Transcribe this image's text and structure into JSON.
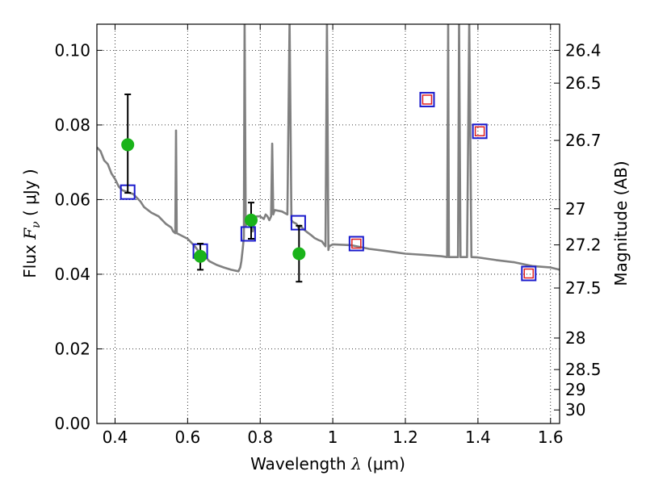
{
  "chart_data": {
    "type": "scatter",
    "xlabel": "Wavelength  λ (μm)",
    "ylabel": "Flux  Fν  ( μJy )",
    "ylabel_parts": {
      "prefix": "Flux  ",
      "symbol": "F",
      "subscript": "ν",
      "suffix": "  ( μJy )"
    },
    "xlabel_parts": {
      "prefix": "Wavelength  ",
      "symbol": "λ",
      "suffix": " (μm)"
    },
    "y2label": "Magnitude (AB)",
    "xlim": [
      0.35,
      1.625
    ],
    "ylim": [
      0.0,
      0.107
    ],
    "grid": true,
    "x_ticks": [
      0.4,
      0.6,
      0.8,
      1.0,
      1.2,
      1.4,
      1.6
    ],
    "x_tick_labels": [
      "0.4",
      "0.6",
      "0.8",
      "1",
      "1.2",
      "1.4",
      "1.6"
    ],
    "y_ticks": [
      0.0,
      0.02,
      0.04,
      0.06,
      0.08,
      0.1
    ],
    "y_tick_labels": [
      "0.00",
      "0.02",
      "0.04",
      "0.06",
      "0.08",
      "0.10"
    ],
    "mag_ticks": [
      "26.4",
      "26.5",
      "26.7",
      "27",
      "27.2",
      "27.5",
      "28",
      "28.5",
      "29",
      "30"
    ],
    "colors": {
      "model": "#808080",
      "observed": "#1ab31a",
      "model_box": "#1a1acc",
      "upper_box": "#e02020",
      "errorbar": "#000000"
    },
    "model_spectrum": [
      [
        0.35,
        0.074
      ],
      [
        0.36,
        0.073
      ],
      [
        0.37,
        0.0705
      ],
      [
        0.38,
        0.0695
      ],
      [
        0.39,
        0.067
      ],
      [
        0.4,
        0.0655
      ],
      [
        0.41,
        0.0635
      ],
      [
        0.42,
        0.0625
      ],
      [
        0.435,
        0.062
      ],
      [
        0.45,
        0.0615
      ],
      [
        0.46,
        0.0605
      ],
      [
        0.47,
        0.0595
      ],
      [
        0.48,
        0.058
      ],
      [
        0.5,
        0.0565
      ],
      [
        0.52,
        0.0555
      ],
      [
        0.54,
        0.0535
      ],
      [
        0.555,
        0.0525
      ],
      [
        0.56,
        0.0515
      ],
      [
        0.566,
        0.051
      ],
      [
        0.568,
        0.0785
      ],
      [
        0.57,
        0.051
      ],
      [
        0.58,
        0.0505
      ],
      [
        0.6,
        0.0495
      ],
      [
        0.62,
        0.0475
      ],
      [
        0.635,
        0.0455
      ],
      [
        0.65,
        0.0445
      ],
      [
        0.66,
        0.0435
      ],
      [
        0.68,
        0.0425
      ],
      [
        0.7,
        0.0418
      ],
      [
        0.72,
        0.0412
      ],
      [
        0.74,
        0.0408
      ],
      [
        0.745,
        0.0418
      ],
      [
        0.748,
        0.0435
      ],
      [
        0.752,
        0.047
      ],
      [
        0.755,
        0.05
      ],
      [
        0.757,
        0.108
      ],
      [
        0.76,
        0.053
      ],
      [
        0.765,
        0.054
      ],
      [
        0.77,
        0.0535
      ],
      [
        0.775,
        0.053
      ],
      [
        0.78,
        0.0515
      ],
      [
        0.785,
        0.0545
      ],
      [
        0.79,
        0.0555
      ],
      [
        0.8,
        0.0555
      ],
      [
        0.81,
        0.0548
      ],
      [
        0.815,
        0.056
      ],
      [
        0.82,
        0.0555
      ],
      [
        0.825,
        0.0545
      ],
      [
        0.83,
        0.0555
      ],
      [
        0.833,
        0.075
      ],
      [
        0.836,
        0.056
      ],
      [
        0.84,
        0.0572
      ],
      [
        0.86,
        0.0568
      ],
      [
        0.875,
        0.056
      ],
      [
        0.881,
        0.108
      ],
      [
        0.886,
        0.0545
      ],
      [
        0.89,
        0.054
      ],
      [
        0.9,
        0.0535
      ],
      [
        0.905,
        0.0525
      ],
      [
        0.91,
        0.053
      ],
      [
        0.92,
        0.052
      ],
      [
        0.93,
        0.0512
      ],
      [
        0.94,
        0.0505
      ],
      [
        0.95,
        0.0497
      ],
      [
        0.96,
        0.0492
      ],
      [
        0.97,
        0.0488
      ],
      [
        0.98,
        0.0475
      ],
      [
        0.984,
        0.108
      ],
      [
        0.988,
        0.0465
      ],
      [
        0.99,
        0.0475
      ],
      [
        1.0,
        0.048
      ],
      [
        1.05,
        0.0478
      ],
      [
        1.1,
        0.0468
      ],
      [
        1.15,
        0.0462
      ],
      [
        1.2,
        0.0455
      ],
      [
        1.25,
        0.0452
      ],
      [
        1.3,
        0.0448
      ],
      [
        1.315,
        0.0446
      ],
      [
        1.318,
        0.108
      ],
      [
        1.32,
        0.0446
      ],
      [
        1.345,
        0.0446
      ],
      [
        1.348,
        0.108
      ],
      [
        1.352,
        0.0446
      ],
      [
        1.36,
        0.0446
      ],
      [
        1.37,
        0.0446
      ],
      [
        1.376,
        0.108
      ],
      [
        1.382,
        0.0446
      ],
      [
        1.4,
        0.0445
      ],
      [
        1.45,
        0.0438
      ],
      [
        1.5,
        0.0432
      ],
      [
        1.55,
        0.0422
      ],
      [
        1.6,
        0.0418
      ],
      [
        1.625,
        0.0412
      ]
    ],
    "observed_points": [
      {
        "x": 0.435,
        "y": 0.0747,
        "yerr_low": 0.0618,
        "yerr_high": 0.0882
      },
      {
        "x": 0.635,
        "y": 0.0448,
        "yerr_low": 0.0412,
        "yerr_high": 0.0482
      },
      {
        "x": 0.775,
        "y": 0.0545,
        "yerr_low": 0.0495,
        "yerr_high": 0.0592
      },
      {
        "x": 0.907,
        "y": 0.0455,
        "yerr_low": 0.038,
        "yerr_high": 0.053
      }
    ],
    "model_points": [
      {
        "x": 0.435,
        "y": 0.062,
        "upper_limit": false
      },
      {
        "x": 0.635,
        "y": 0.0462,
        "upper_limit": false
      },
      {
        "x": 0.767,
        "y": 0.0508,
        "upper_limit": false
      },
      {
        "x": 0.905,
        "y": 0.0538,
        "upper_limit": false
      },
      {
        "x": 1.065,
        "y": 0.0482,
        "upper_limit": true
      },
      {
        "x": 1.26,
        "y": 0.0868,
        "upper_limit": true
      },
      {
        "x": 1.405,
        "y": 0.0783,
        "upper_limit": true
      },
      {
        "x": 1.54,
        "y": 0.0402,
        "upper_limit": true
      }
    ]
  }
}
